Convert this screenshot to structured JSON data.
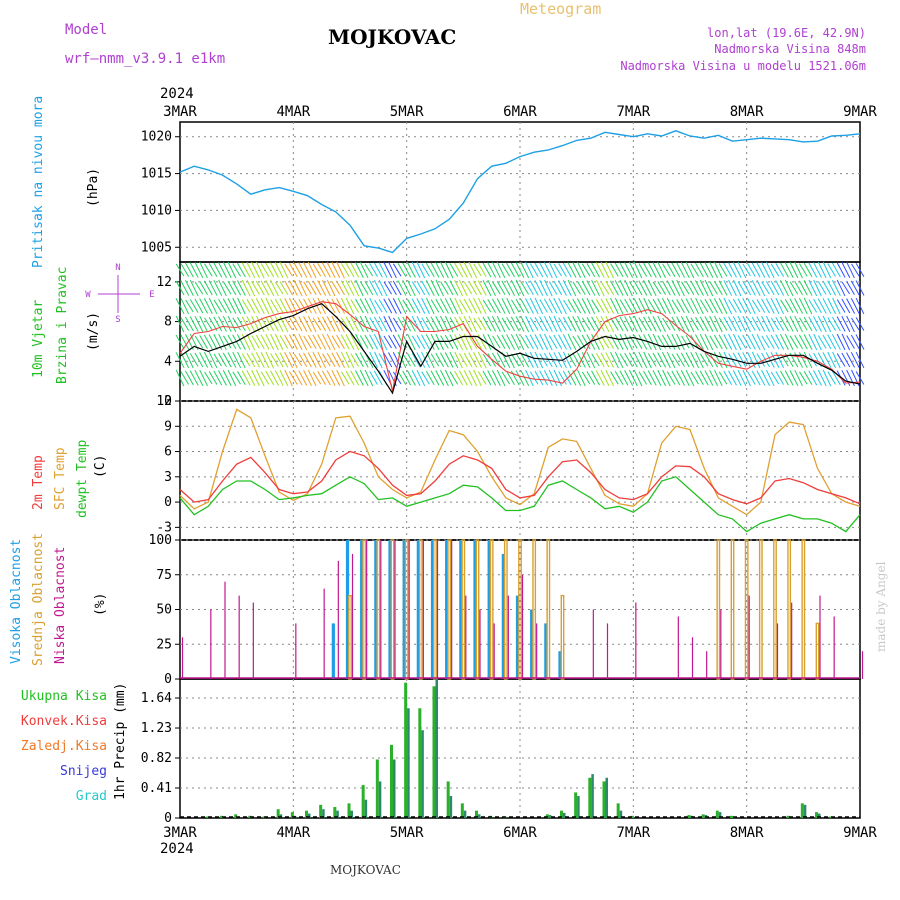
{
  "header": {
    "model_label": "Model",
    "model_name": "wrf–nmm_v3.9.1  e1km",
    "title": "MOJKOVAC",
    "meteogram_label": "Meteogram",
    "lonlat": "lon,lat (19.6E, 42.9N)",
    "elevation": "Nadmorska Visina 848m",
    "model_elevation": "Nadmorska Visina u modelu 1521.06m",
    "year_top": "2024",
    "year_bottom": "2024",
    "footer": "MOJKOVAC",
    "credit": "made by Angel"
  },
  "colors": {
    "pressure": "#1ea0e6",
    "temp2m": "#f03c3c",
    "sfc": "#e0a030",
    "dewpt": "#22c022",
    "high_cloud": "#1e9ee6",
    "mid_cloud": "#d8a030",
    "low_cloud": "#c01890",
    "total_precip": "#2ab02a",
    "conv_precip": "#e02828",
    "frozen_precip": "#f07828",
    "snow": "#3838d8",
    "hail": "#28c8c8",
    "model": "#b040d0",
    "meteogram": "#e8c070"
  },
  "chart_data": [
    {
      "type": "line",
      "name": "pressure",
      "ylabel": "Pritisak na nivou mora",
      "unit": "(hPa)",
      "x_ticks": [
        "3MAR",
        "4MAR",
        "5MAR",
        "6MAR",
        "7MAR",
        "8MAR",
        "9MAR"
      ],
      "y_ticks": [
        1005,
        1010,
        1015,
        1020
      ],
      "ylim": [
        1003,
        1022
      ],
      "grid": true,
      "x_hours": [
        0,
        3,
        6,
        9,
        12,
        15,
        18,
        21,
        24,
        27,
        30,
        33,
        36,
        39,
        42,
        45,
        48,
        51,
        54,
        57,
        60,
        63,
        66,
        69,
        72,
        75,
        78,
        81,
        84,
        87,
        90,
        93,
        96,
        99,
        102,
        105,
        108,
        111,
        114,
        117,
        120,
        123,
        126,
        129,
        132,
        135,
        138,
        141,
        144
      ],
      "values": [
        1015.2,
        1016,
        1015.5,
        1014.8,
        1013.6,
        1012.2,
        1012.8,
        1013.1,
        1012.6,
        1012,
        1010.8,
        1009.8,
        1008,
        1005.2,
        1004.9,
        1004.3,
        1006.2,
        1006.8,
        1007.5,
        1008.8,
        1011,
        1014.3,
        1016,
        1016.4,
        1017.3,
        1017.9,
        1018.2,
        1018.8,
        1019.5,
        1019.8,
        1020.6,
        1020.3,
        1020,
        1020.4,
        1020.1,
        1020.8,
        1020.1,
        1019.8,
        1020.2,
        1019.4,
        1019.6,
        1019.8,
        1019.7,
        1019.6,
        1019.3,
        1019.4,
        1020.1,
        1020.2,
        1020.4
      ]
    },
    {
      "type": "line",
      "name": "wind",
      "ylabel_line1": "10m Vjetar",
      "ylabel_line2": "Brzina i Pravac",
      "unit": "(m/s)",
      "compass": "N",
      "y_ticks": [
        0,
        4,
        8,
        12
      ],
      "ylim": [
        0,
        14
      ],
      "x_hours": [
        0,
        3,
        6,
        9,
        12,
        15,
        18,
        21,
        24,
        27,
        30,
        33,
        36,
        39,
        42,
        45,
        48,
        51,
        54,
        57,
        60,
        63,
        66,
        69,
        72,
        75,
        78,
        81,
        84,
        87,
        90,
        93,
        96,
        99,
        102,
        105,
        108,
        111,
        114,
        117,
        120,
        123,
        126,
        129,
        132,
        135,
        138,
        141,
        144
      ],
      "series": [
        {
          "name": "speed",
          "values": [
            4.5,
            5.5,
            5,
            5.5,
            6,
            6.8,
            7.5,
            8.2,
            8.6,
            9.3,
            9.8,
            8.5,
            7,
            5,
            3,
            0.8,
            6,
            3.5,
            6,
            6,
            6.5,
            6.5,
            5.5,
            4.5,
            4.8,
            4.3,
            4.2,
            4.1,
            5,
            6,
            6.5,
            6.2,
            6.4,
            6,
            5.5,
            5.5,
            5.8,
            5,
            4.5,
            4.2,
            3.8,
            3.8,
            4.2,
            4.6,
            4.6,
            3.8,
            3.1,
            2,
            1.7
          ]
        },
        {
          "name": "gust",
          "values": [
            4.8,
            6.8,
            7,
            7.5,
            7.4,
            7.8,
            8.4,
            8.8,
            9,
            9.5,
            10,
            9.8,
            8.7,
            7.5,
            7,
            1,
            8.5,
            7,
            7,
            7.2,
            7.8,
            5.5,
            4.2,
            3,
            2.5,
            2.2,
            2.1,
            1.8,
            3.2,
            6,
            8,
            8.6,
            8.8,
            9.2,
            8.8,
            7.6,
            6.5,
            5,
            3.8,
            3.5,
            3.2,
            4,
            4.6,
            4.6,
            4.4,
            4,
            3.2,
            1.8,
            1.9
          ]
        }
      ]
    },
    {
      "type": "line",
      "name": "temperature",
      "ylabel_line1": "2m Temp",
      "ylabel_line2": "SFC Temp",
      "ylabel_line3": "dewpt Temp",
      "unit": "(C)",
      "y_ticks": [
        -3,
        0,
        3,
        6,
        9,
        12
      ],
      "ylim": [
        -4.5,
        12
      ],
      "x_hours": [
        0,
        3,
        6,
        9,
        12,
        15,
        18,
        21,
        24,
        27,
        30,
        33,
        36,
        39,
        42,
        45,
        48,
        51,
        54,
        57,
        60,
        63,
        66,
        69,
        72,
        75,
        78,
        81,
        84,
        87,
        90,
        93,
        96,
        99,
        102,
        105,
        108,
        111,
        114,
        117,
        120,
        123,
        126,
        129,
        132,
        135,
        138,
        141,
        144
      ],
      "series": [
        {
          "name": "2m",
          "values": [
            1.5,
            0,
            0.3,
            2.5,
            4.5,
            5.3,
            3.5,
            1.5,
            1,
            1.2,
            2.5,
            5,
            6,
            5.5,
            4,
            2,
            0.8,
            1,
            2.5,
            4.5,
            5.5,
            5,
            4,
            1.5,
            0.5,
            0.8,
            3,
            4.8,
            5,
            3.5,
            1.5,
            0.5,
            0.3,
            1,
            3,
            4.3,
            4.2,
            3,
            1,
            0.3,
            -0.2,
            0.5,
            2.5,
            2.8,
            2.3,
            1.5,
            1,
            0.5,
            -0.2
          ]
        },
        {
          "name": "sfc",
          "values": [
            0.8,
            -0.8,
            0,
            6,
            11,
            10,
            5.5,
            1.2,
            0.2,
            1,
            4.5,
            10,
            10.2,
            7,
            3,
            1.5,
            0.5,
            1.2,
            5,
            8.5,
            8,
            6,
            3,
            0.5,
            -0.3,
            1,
            6.5,
            7.5,
            7.2,
            4,
            0.8,
            -0.2,
            -0.5,
            1,
            7,
            9,
            8.6,
            4,
            0.5,
            -0.5,
            -1.5,
            0,
            8,
            9.5,
            9.2,
            4,
            1,
            0,
            -0.5
          ]
        },
        {
          "name": "dewpt",
          "values": [
            0.5,
            -1.5,
            -0.5,
            1.5,
            2.5,
            2.5,
            1.5,
            0.3,
            0.5,
            0.8,
            1,
            2,
            3,
            2.2,
            0.3,
            0.5,
            -0.5,
            0,
            0.5,
            1,
            2,
            1.8,
            0.5,
            -1,
            -1,
            -0.5,
            2,
            2.5,
            1.5,
            0.5,
            -0.8,
            -0.5,
            -1.2,
            0,
            2.5,
            3,
            1.5,
            0,
            -1.5,
            -2,
            -3.5,
            -2.5,
            -2,
            -1.5,
            -2,
            -2,
            -2.5,
            -3.5,
            -1.5
          ]
        }
      ]
    },
    {
      "type": "bar",
      "name": "cloud",
      "ylabel_line1": "Visoka Oblacnost",
      "ylabel_line2": "Srednja Oblacnost",
      "ylabel_line3": "Niska Oblacnost",
      "unit": "(%)",
      "y_ticks": [
        0,
        25,
        50,
        75,
        100
      ],
      "ylim": [
        0,
        100
      ],
      "x_hours": [
        0,
        3,
        6,
        9,
        12,
        15,
        18,
        21,
        24,
        27,
        30,
        33,
        36,
        39,
        42,
        45,
        48,
        51,
        54,
        57,
        60,
        63,
        66,
        69,
        72,
        75,
        78,
        81,
        84,
        87,
        90,
        93,
        96,
        99,
        102,
        105,
        108,
        111,
        114,
        117,
        120,
        123,
        126,
        129,
        132,
        135,
        138,
        141,
        144
      ],
      "series": [
        {
          "name": "high",
          "values": [
            0,
            0,
            0,
            0,
            0,
            0,
            0,
            0,
            0,
            0,
            0,
            40,
            100,
            100,
            100,
            100,
            100,
            100,
            100,
            100,
            100,
            100,
            100,
            90,
            60,
            50,
            40,
            20,
            0,
            0,
            0,
            0,
            0,
            0,
            0,
            0,
            0,
            0,
            0,
            0,
            0,
            0,
            0,
            0,
            0,
            0,
            0,
            0,
            0
          ]
        },
        {
          "name": "mid",
          "values": [
            0,
            0,
            0,
            0,
            0,
            0,
            0,
            0,
            0,
            0,
            0,
            0,
            60,
            100,
            100,
            100,
            100,
            100,
            100,
            100,
            100,
            100,
            100,
            100,
            100,
            100,
            100,
            60,
            0,
            0,
            0,
            0,
            0,
            0,
            0,
            0,
            0,
            0,
            100,
            100,
            100,
            100,
            100,
            100,
            100,
            40,
            0,
            0,
            0
          ]
        },
        {
          "name": "low",
          "values": [
            30,
            0,
            50,
            70,
            60,
            55,
            0,
            0,
            40,
            0,
            65,
            85,
            90,
            100,
            100,
            100,
            100,
            100,
            100,
            100,
            60,
            50,
            40,
            60,
            75,
            40,
            0,
            0,
            0,
            50,
            40,
            0,
            55,
            0,
            0,
            45,
            30,
            20,
            50,
            0,
            60,
            0,
            40,
            55,
            0,
            60,
            45,
            0,
            20
          ]
        }
      ]
    },
    {
      "type": "bar",
      "name": "precip",
      "legend": [
        "Ukupna Kisa",
        "Konvek.Kisa",
        "Zaledj.Kisa",
        "Snijeg",
        "Grad"
      ],
      "unit": "1hr Precip (mm)",
      "y_ticks": [
        0,
        0.41,
        0.82,
        1.23,
        1.64
      ],
      "ylim": [
        0,
        1.9
      ],
      "x_hours": [
        0,
        3,
        6,
        9,
        12,
        15,
        18,
        21,
        24,
        27,
        30,
        33,
        36,
        39,
        42,
        45,
        48,
        51,
        54,
        57,
        60,
        63,
        66,
        69,
        72,
        75,
        78,
        81,
        84,
        87,
        90,
        93,
        96,
        99,
        102,
        105,
        108,
        111,
        114,
        117,
        120,
        123,
        126,
        129,
        132,
        135,
        138,
        141,
        144
      ],
      "series": [
        {
          "name": "total",
          "values": [
            0,
            0,
            0.02,
            0.03,
            0.05,
            0.03,
            0.02,
            0.12,
            0.08,
            0.1,
            0.18,
            0.15,
            0.2,
            0.45,
            0.8,
            1.0,
            1.85,
            1.5,
            1.8,
            0.5,
            0.2,
            0.1,
            0.03,
            0.02,
            0,
            0,
            0.05,
            0.1,
            0.35,
            0.55,
            0.5,
            0.2,
            0.03,
            0,
            0,
            0,
            0.04,
            0.05,
            0.1,
            0.03,
            0,
            0,
            0,
            0.03,
            0.2,
            0.08,
            0.02,
            0,
            0
          ]
        },
        {
          "name": "convective",
          "values": [
            0,
            0,
            0,
            0,
            0,
            0,
            0,
            0.05,
            0.03,
            0.06,
            0.12,
            0.1,
            0.1,
            0.25,
            0.5,
            0.8,
            1.5,
            1.2,
            1.9,
            0.3,
            0.1,
            0.05,
            0,
            0,
            0,
            0,
            0.04,
            0.07,
            0.3,
            0.6,
            0.55,
            0.1,
            0,
            0,
            0,
            0,
            0.03,
            0.04,
            0.08,
            0.02,
            0,
            0,
            0,
            0,
            0.18,
            0.06,
            0,
            0,
            0
          ]
        }
      ]
    }
  ]
}
